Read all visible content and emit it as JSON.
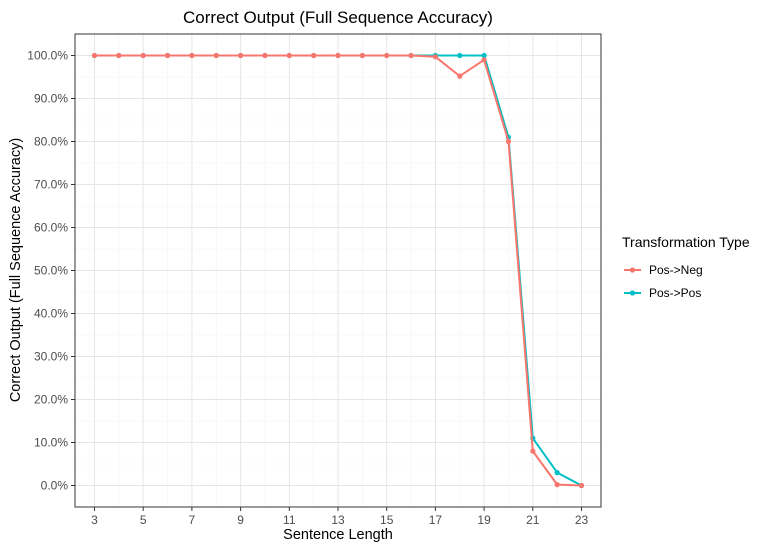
{
  "chart_data": {
    "type": "line",
    "title": "Correct Output  (Full Sequence Accuracy)",
    "xlabel": "Sentence Length",
    "ylabel": "Correct Output (Full Sequence Accuracy)",
    "x": [
      3,
      4,
      5,
      6,
      7,
      8,
      9,
      10,
      11,
      12,
      13,
      14,
      15,
      16,
      17,
      18,
      19,
      20,
      21,
      22,
      23
    ],
    "xlim": [
      2.2,
      23.8
    ],
    "ylim": [
      -5,
      105
    ],
    "x_ticks": [
      3,
      5,
      7,
      9,
      11,
      13,
      15,
      17,
      19,
      21,
      23
    ],
    "x_tick_labels": [
      "3",
      "5",
      "7",
      "9",
      "11",
      "13",
      "15",
      "17",
      "19",
      "21",
      "23"
    ],
    "y_ticks": [
      0,
      10,
      20,
      30,
      40,
      50,
      60,
      70,
      80,
      90,
      100
    ],
    "y_tick_labels": [
      "0.0%",
      "10.0%",
      "20.0%",
      "30.0%",
      "40.0%",
      "50.0%",
      "60.0%",
      "70.0%",
      "80.0%",
      "90.0%",
      "100.0%"
    ],
    "grid": true,
    "legend_title": "Transformation Type",
    "legend_position": "right",
    "series": [
      {
        "name": "Pos->Pos",
        "color": "#00bfc4",
        "values": [
          100,
          100,
          100,
          100,
          100,
          100,
          100,
          100,
          100,
          100,
          100,
          100,
          100,
          100,
          100,
          100,
          100,
          81,
          11,
          3,
          0
        ]
      },
      {
        "name": "Pos->Neg",
        "color": "#f8766d",
        "values": [
          100,
          100,
          100,
          100,
          100,
          100,
          100,
          100,
          100,
          100,
          100,
          100,
          100,
          100,
          99.7,
          95.2,
          99,
          80,
          8,
          0.2,
          0
        ]
      }
    ]
  }
}
